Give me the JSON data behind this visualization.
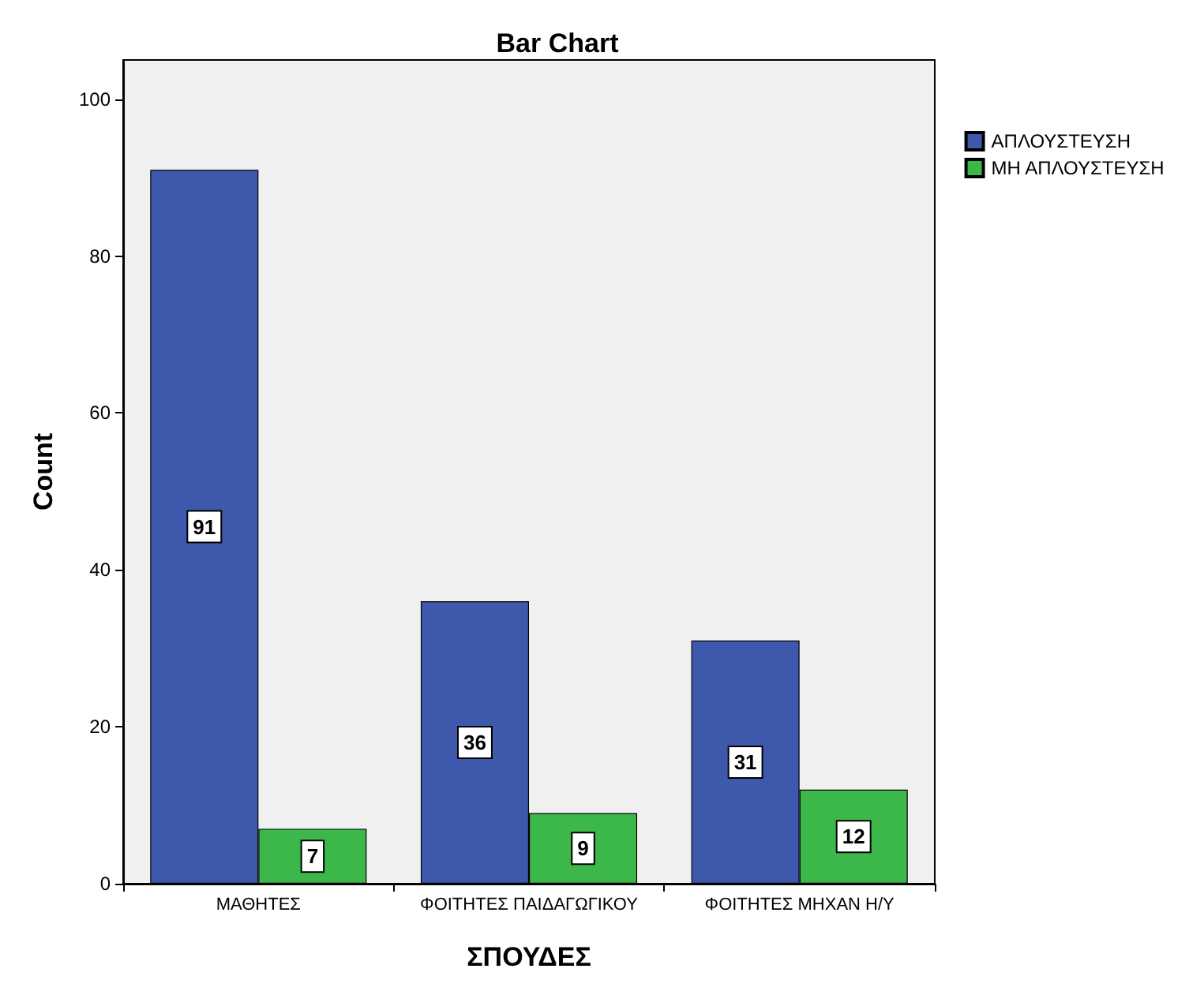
{
  "chart_data": {
    "type": "bar",
    "title": "Bar Chart",
    "xlabel": "ΣΠΟΥΔΕΣ",
    "ylabel": "Count",
    "categories": [
      "ΜΑΘΗΤΕΣ",
      "ΦΟΙΤΗΤΕΣ ΠΑΙΔΑΓΩΓΙΚΟΥ",
      "ΦΟΙΤΗΤΕΣ ΜΗΧΑΝ Η/Υ"
    ],
    "series": [
      {
        "name": "ΑΠΛΟΥΣΤΕΥΣΗ",
        "color": "#3e58ac",
        "values": [
          91,
          36,
          31
        ]
      },
      {
        "name": "ΜΗ ΑΠΛΟΥΣΤΕΥΣΗ",
        "color": "#3cb84a",
        "values": [
          7,
          9,
          12
        ]
      }
    ],
    "ylim": [
      0,
      105
    ],
    "yticks": [
      0,
      20,
      40,
      60,
      80,
      100
    ],
    "grid": false,
    "legend": "right",
    "data_labels": true
  }
}
